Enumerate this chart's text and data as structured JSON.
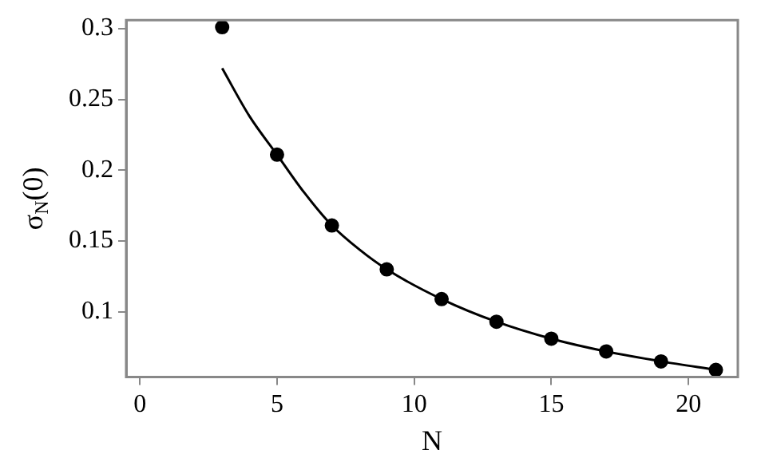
{
  "chart_data": {
    "type": "scatter",
    "xlabel": "N",
    "ylabel": "σ$_{N}$(0)",
    "xlim": [
      -0.5,
      21.8
    ],
    "ylim": [
      0.054,
      0.306
    ],
    "xticks": [
      0,
      5,
      10,
      15,
      20
    ],
    "yticks": [
      0.1,
      0.15,
      0.2,
      0.25,
      0.3
    ],
    "grid": false,
    "legend": false,
    "marker": "circle",
    "series": [
      {
        "type": "scatter",
        "color": "#000000",
        "x": [
          3,
          5,
          7,
          9,
          11,
          13,
          15,
          17,
          19,
          21
        ],
        "values": [
          0.301,
          0.211,
          0.161,
          0.13,
          0.109,
          0.093,
          0.081,
          0.072,
          0.065,
          0.059
        ]
      },
      {
        "type": "line",
        "color": "#000000",
        "marker": "none",
        "line_style": "solid",
        "x": [
          3,
          4,
          5,
          6,
          7,
          8,
          9,
          11,
          13,
          15,
          17,
          19,
          21
        ],
        "values": [
          0.272,
          0.238,
          0.211,
          0.184,
          0.161,
          0.144,
          0.13,
          0.109,
          0.093,
          0.081,
          0.072,
          0.065,
          0.059
        ]
      }
    ]
  }
}
